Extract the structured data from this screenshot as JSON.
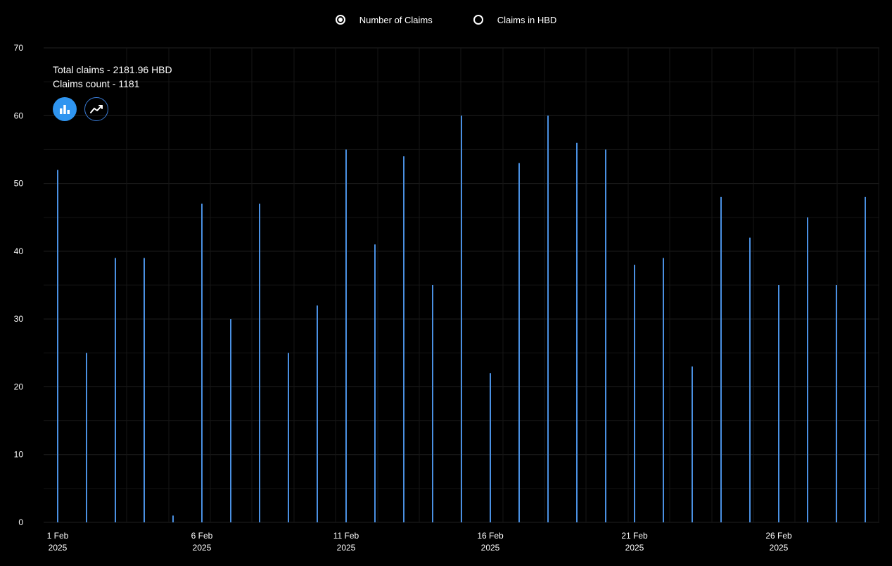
{
  "legend": {
    "options": [
      {
        "label": "Number of Claims",
        "selected": true
      },
      {
        "label": "Claims in HBD",
        "selected": false
      }
    ]
  },
  "summary": {
    "total": "Total claims - 2181.96 HBD",
    "count": "Claims count - 1181"
  },
  "view_buttons": [
    {
      "icon": "bar-chart-icon",
      "active": true
    },
    {
      "icon": "line-chart-icon",
      "active": false
    }
  ],
  "colors": {
    "bar": "#4a90e2",
    "active_button": "#2f95f0",
    "background": "#000000",
    "grid": "#1e1e1e"
  },
  "chart_data": {
    "type": "bar",
    "x": [
      "2025-02-01",
      "2025-02-02",
      "2025-02-03",
      "2025-02-04",
      "2025-02-05",
      "2025-02-06",
      "2025-02-07",
      "2025-02-08",
      "2025-02-09",
      "2025-02-10",
      "2025-02-11",
      "2025-02-12",
      "2025-02-13",
      "2025-02-14",
      "2025-02-15",
      "2025-02-16",
      "2025-02-17",
      "2025-02-18",
      "2025-02-19",
      "2025-02-20",
      "2025-02-21",
      "2025-02-22",
      "2025-02-23",
      "2025-02-24",
      "2025-02-25",
      "2025-02-26",
      "2025-02-27",
      "2025-02-28",
      "2025-03-01"
    ],
    "values": [
      52,
      25,
      39,
      39,
      1,
      47,
      30,
      47,
      25,
      32,
      55,
      41,
      54,
      35,
      60,
      22,
      53,
      60,
      56,
      55,
      38,
      39,
      23,
      48,
      42,
      35,
      45,
      35,
      48
    ],
    "ylim": [
      0,
      70
    ],
    "yticks": [
      0,
      10,
      20,
      30,
      40,
      50,
      60,
      70
    ],
    "xticks": [
      {
        "date": "2025-02-01",
        "day": "1 Feb",
        "year": "2025"
      },
      {
        "date": "2025-02-06",
        "day": "6 Feb",
        "year": "2025"
      },
      {
        "date": "2025-02-11",
        "day": "11 Feb",
        "year": "2025"
      },
      {
        "date": "2025-02-16",
        "day": "16 Feb",
        "year": "2025"
      },
      {
        "date": "2025-02-21",
        "day": "21 Feb",
        "year": "2025"
      },
      {
        "date": "2025-02-26",
        "day": "26 Feb",
        "year": "2025"
      }
    ],
    "grid": true,
    "legend_position": "top-center"
  }
}
